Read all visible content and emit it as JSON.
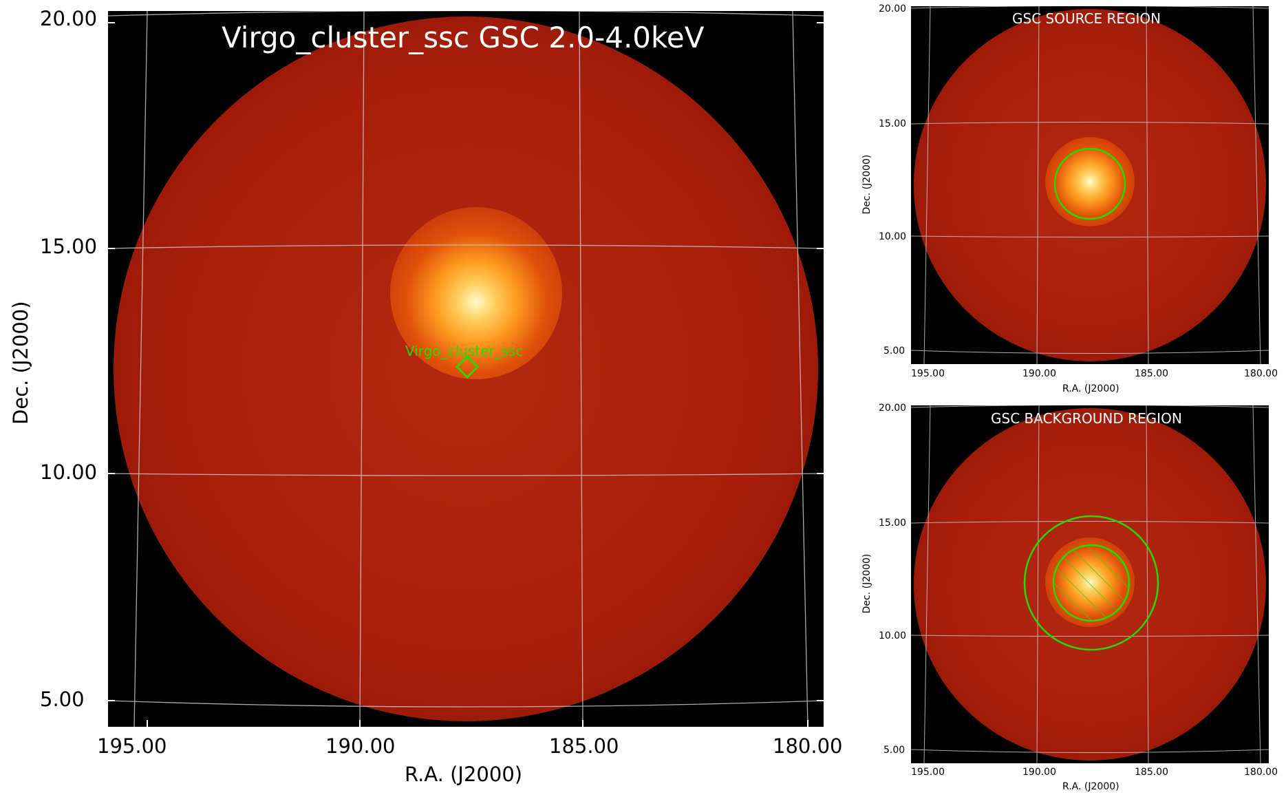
{
  "main": {
    "title": "Virgo_cluster_ssc GSC 2.0-4.0keV",
    "source_label": "Virgo_cluster_ssc",
    "xlabel": "R.A. (J2000)",
    "ylabel": "Dec. (J2000)",
    "ra_ticks": [
      "195.00",
      "190.00",
      "185.00",
      "180.00"
    ],
    "dec_ticks": [
      "20.00",
      "15.00",
      "10.00",
      "5.00"
    ]
  },
  "source_panel": {
    "title": "GSC SOURCE REGION",
    "xlabel": "R.A. (J2000)",
    "ylabel": "Dec. (J2000)",
    "ra_ticks": [
      "195.00",
      "190.00",
      "185.00",
      "180.00"
    ],
    "dec_ticks": [
      "20.00",
      "15.00",
      "10.00",
      "5.00"
    ]
  },
  "background_panel": {
    "title": "GSC BACKGROUND REGION",
    "xlabel": "R.A. (J2000)",
    "ylabel": "Dec. (J2000)",
    "ra_ticks": [
      "195.00",
      "190.00",
      "185.00",
      "180.00"
    ],
    "dec_ticks": [
      "20.00",
      "15.00",
      "10.00",
      "5.00"
    ]
  },
  "colors": {
    "sky_red": "#a81e0a",
    "region_green": "#22dd00",
    "grid": "#c8c8c8",
    "background": "#000000"
  }
}
